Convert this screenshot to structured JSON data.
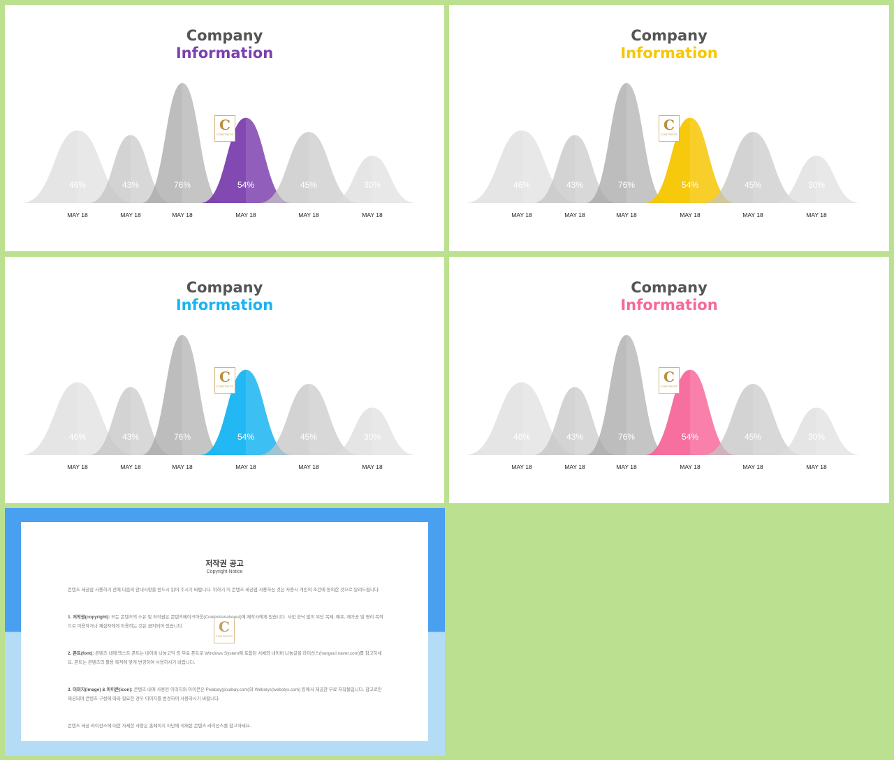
{
  "slides": [
    {
      "title_line1": "Company",
      "title_line2": "Information",
      "accent_color": "#7b3fae",
      "chart_data": {
        "type": "area",
        "categories": [
          "MAY 18",
          "MAY 18",
          "MAY 18",
          "MAY 18",
          "MAY 18",
          "MAY 18"
        ],
        "values": [
          46,
          43,
          76,
          54,
          45,
          30
        ],
        "value_labels": [
          "46%",
          "43%",
          "76%",
          "54%",
          "45%",
          "30%"
        ],
        "highlight_index": 3
      }
    },
    {
      "title_line1": "Company",
      "title_line2": "Information",
      "accent_color": "#f7c600",
      "chart_data": {
        "type": "area",
        "categories": [
          "MAY 18",
          "MAY 18",
          "MAY 18",
          "MAY 18",
          "MAY 18",
          "MAY 18"
        ],
        "values": [
          46,
          43,
          76,
          54,
          45,
          30
        ],
        "value_labels": [
          "46%",
          "43%",
          "76%",
          "54%",
          "45%",
          "30%"
        ],
        "highlight_index": 3
      }
    },
    {
      "title_line1": "Company",
      "title_line2": "Information",
      "accent_color": "#16b4f2",
      "chart_data": {
        "type": "area",
        "categories": [
          "MAY 18",
          "MAY 18",
          "MAY 18",
          "MAY 18",
          "MAY 18",
          "MAY 18"
        ],
        "values": [
          46,
          43,
          76,
          54,
          45,
          30
        ],
        "value_labels": [
          "46%",
          "43%",
          "76%",
          "54%",
          "45%",
          "30%"
        ],
        "highlight_index": 3
      }
    },
    {
      "title_line1": "Company",
      "title_line2": "Information",
      "accent_color": "#f7679a",
      "chart_data": {
        "type": "area",
        "categories": [
          "MAY 18",
          "MAY 18",
          "MAY 18",
          "MAY 18",
          "MAY 18",
          "MAY 18"
        ],
        "values": [
          46,
          43,
          76,
          54,
          45,
          30
        ],
        "value_labels": [
          "46%",
          "43%",
          "76%",
          "54%",
          "45%",
          "30%"
        ],
        "highlight_index": 3
      }
    }
  ],
  "logo": {
    "letter": "C",
    "text": "CONTENTS"
  },
  "notice": {
    "title": "저작권 공고",
    "subtitle": "Copyright Notice",
    "intro": "콘텐츠 세공업 사용하기 전에 다음의 안내사항을 반드시 읽어 주시기 바랍니다. 위하기 이 콘텐츠 세공업 사용하신 것은 사용시 개인의 조건에 동의한 것으로 알려드립니다.",
    "p1_head": "1. 저작권(copyright):",
    "p1_body": "모든 콘텐츠의 소유 및 저작권은 콘텐츠메이크아웃(Contentsmakeout)에 제작사에게 있습니다. 사전 승낙 없이 무단 복제, 배포, 재가공 및 영리 목적으로 이용하거나 제삼자에게 이용하는 것은 금지되어 있습니다.",
    "p2_head": "2. 폰트(font):",
    "p2_body": "콘텐츠 내에 텍스트 폰트는 네이버 나눔고딕 등 무료 폰트로 Windows System에 포함된 서체와 네이버 나눔글꼴 라이선스(hangeul.naver.com)를 참고하세요. 폰트는 콘텐츠의 활용 목적에 맞게 변경하여 사용하시기 바랍니다.",
    "p3_head": "3. 이미지(image) & 아이콘(icon):",
    "p3_body": "콘텐츠 내에 사용된 이미지와 아이콘은 Pixabay(pixabay.com)와 Webolys(webolys.com) 등에서 제공한 무료 저작물입니다. 참고로만 제공되며 콘텐츠 구성에 따라 필요한 경우 이미지를 변경하여 사용하시기 바랍니다.",
    "outro": "콘텐츠 세공 라이선스에 대한 자세한 사항은 홈페이지 하단에 게재된 콘텐츠 라이선스를 참고하세요."
  }
}
